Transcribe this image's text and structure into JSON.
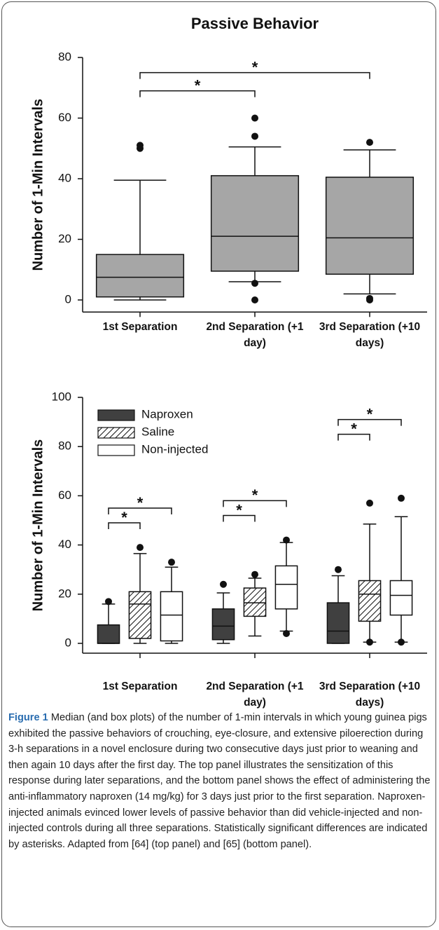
{
  "charts": [
    {
      "type": "box",
      "title": "Passive Behavior",
      "ylabel": "Number of 1-Min Intervals",
      "categories": [
        "1st Separation",
        "2nd Separation (+1 day)",
        "3rd Separation (+10 days)"
      ],
      "ylim": [
        -4,
        80
      ],
      "yticks": [
        0,
        20,
        40,
        60,
        80
      ],
      "series": [
        {
          "color": "#a6a6a6",
          "boxes": [
            {
              "whislo": 0,
              "q1": 1,
              "med": 7.5,
              "q3": 15,
              "whishi": 39.5,
              "fliers": [
                50,
                51
              ]
            },
            {
              "whislo": 6,
              "q1": 9.5,
              "med": 21,
              "q3": 41,
              "whishi": 50.5,
              "fliers": [
                60,
                54,
                5.5,
                0
              ]
            },
            {
              "whislo": 2,
              "q1": 8.5,
              "med": 20.5,
              "q3": 40.5,
              "whishi": 49.5,
              "fliers": [
                52,
                0.5,
                0
              ]
            }
          ]
        }
      ],
      "annotations": [
        {
          "text": "*",
          "between": [
            0,
            1
          ],
          "level": 69
        },
        {
          "text": "*",
          "between": [
            0,
            2
          ],
          "level": 75
        }
      ]
    },
    {
      "type": "grouped-box",
      "ylabel": "Number of 1-Min Intervals",
      "categories": [
        "1st Separation",
        "2nd Separation (+1 day)",
        "3rd Separation (+10 days)"
      ],
      "ylim": [
        -4,
        100
      ],
      "yticks": [
        0,
        20,
        40,
        60,
        80,
        100
      ],
      "legend": "upper left",
      "series": [
        {
          "name": "Naproxen",
          "color": "#404040",
          "boxes": [
            {
              "whislo": 0,
              "q1": 0,
              "med": 0,
              "q3": 7.5,
              "whishi": 16,
              "fliers": [
                17
              ]
            },
            {
              "whislo": 0,
              "q1": 1.5,
              "med": 7,
              "q3": 14,
              "whishi": 20.5,
              "fliers": [
                24
              ]
            },
            {
              "whislo": 0,
              "q1": 0,
              "med": 5,
              "q3": 16.5,
              "whishi": 27.5,
              "fliers": [
                30
              ]
            }
          ]
        },
        {
          "name": "Saline",
          "color": "hatch",
          "boxes": [
            {
              "whislo": 0,
              "q1": 2,
              "med": 16,
              "q3": 21,
              "whishi": 36.5,
              "fliers": [
                39
              ]
            },
            {
              "whislo": 3,
              "q1": 11,
              "med": 16.5,
              "q3": 22.5,
              "whishi": 26.5,
              "fliers": [
                28
              ]
            },
            {
              "whislo": 0.5,
              "q1": 9,
              "med": 20,
              "q3": 25.5,
              "whishi": 48.5,
              "fliers": [
                57,
                0.5
              ]
            }
          ]
        },
        {
          "name": "Non-injected",
          "color": "#ffffff",
          "boxes": [
            {
              "whislo": 0,
              "q1": 1,
              "med": 11.5,
              "q3": 21,
              "whishi": 31,
              "fliers": [
                33
              ]
            },
            {
              "whislo": 5,
              "q1": 14,
              "med": 24,
              "q3": 31.5,
              "whishi": 41,
              "fliers": [
                42,
                4
              ]
            },
            {
              "whislo": 0.5,
              "q1": 11.5,
              "med": 19.5,
              "q3": 25.5,
              "whishi": 51.5,
              "fliers": [
                59,
                0.5
              ]
            }
          ]
        }
      ],
      "annotations": [
        {
          "text": "*",
          "category": 0,
          "between": [
            0,
            1
          ],
          "level": 49
        },
        {
          "text": "*",
          "category": 0,
          "between": [
            0,
            2
          ],
          "level": 55
        },
        {
          "text": "*",
          "category": 1,
          "between": [
            0,
            1
          ],
          "level": 52
        },
        {
          "text": "*",
          "category": 1,
          "between": [
            0,
            2
          ],
          "level": 58
        },
        {
          "text": "*",
          "category": 2,
          "between": [
            0,
            1
          ],
          "level": 85
        },
        {
          "text": "*",
          "category": 2,
          "between": [
            0,
            2
          ],
          "level": 91
        }
      ]
    }
  ],
  "caption": {
    "label": "Figure 1",
    "text": "Median (and box plots) of the number of 1-min intervals in which young guinea pigs exhibited the passive behaviors of crouching, eye-closure, and extensive piloerection during 3-h separations in a novel enclosure during two consecutive days just prior to weaning and then again 10 days after the first day. The top panel illustrates the sensitization of this response during later separations, and the bottom panel shows the effect of administering the anti-inflammatory naproxen (14 mg/kg) for 3 days just prior to the first separation. Naproxen-injected animals evinced lower levels of passive behavior than did vehicle-injected and non-injected controls during all three separations. Statistically significant differences are indicated by asterisks. Adapted from [64] (top panel) and [65] (bottom panel)."
  }
}
